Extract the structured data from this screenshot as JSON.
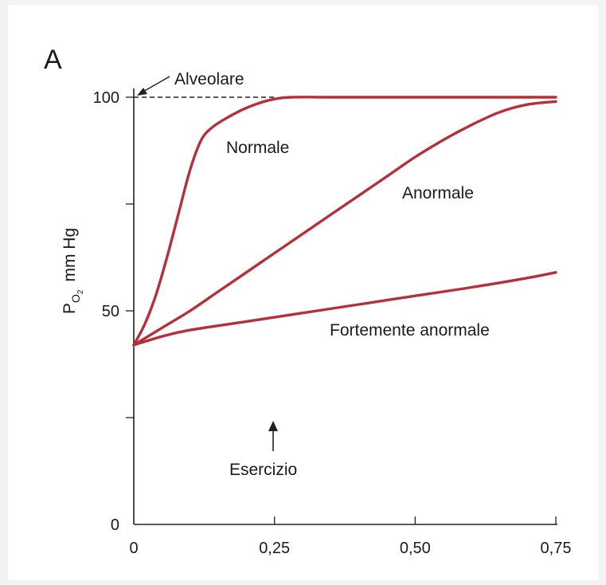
{
  "panel_label": "A",
  "chart_data": {
    "type": "line",
    "title": "",
    "xlabel": "",
    "ylabel": {
      "base": "P",
      "sub": "O",
      "subsub": "2",
      "unit": "mm Hg"
    },
    "xlim": [
      0,
      0.75
    ],
    "ylim": [
      0,
      100
    ],
    "x_ticks": [
      0,
      0.25,
      0.5,
      0.75
    ],
    "x_tick_labels": [
      "0",
      "0,25",
      "0,50",
      "0,75"
    ],
    "y_ticks": [
      0,
      25,
      50,
      75,
      100
    ],
    "y_tick_labels": [
      "0",
      "",
      "50",
      "",
      "100"
    ],
    "grid": false,
    "series_color": "#b5303a",
    "series": [
      {
        "name": "Normale",
        "x": [
          0,
          0.02,
          0.04,
          0.06,
          0.08,
          0.1,
          0.12,
          0.14,
          0.17,
          0.2,
          0.24,
          0.28,
          0.35,
          0.5,
          0.75
        ],
        "y": [
          42,
          47,
          54,
          63,
          73,
          83,
          90,
          93,
          95.5,
          97.5,
          99.3,
          100,
          100,
          100,
          100
        ]
      },
      {
        "name": "Anormale",
        "x": [
          0,
          0.05,
          0.1,
          0.15,
          0.2,
          0.25,
          0.3,
          0.35,
          0.4,
          0.45,
          0.5,
          0.55,
          0.6,
          0.65,
          0.7,
          0.75
        ],
        "y": [
          42,
          46,
          50,
          54.5,
          59,
          63.5,
          68,
          72.5,
          77,
          81.5,
          86,
          90,
          93.5,
          96.5,
          98.3,
          99
        ]
      },
      {
        "name": "Fortemente anormale",
        "x": [
          0,
          0.05,
          0.1,
          0.2,
          0.3,
          0.4,
          0.5,
          0.6,
          0.7,
          0.75
        ],
        "y": [
          42,
          44,
          45.5,
          47.5,
          49.5,
          51.5,
          53.5,
          55.5,
          57.7,
          59
        ]
      }
    ],
    "reference_line": {
      "name": "Alveolare",
      "y": 100
    },
    "annotations": [
      {
        "text": "Esercizio",
        "x": 0.25
      }
    ]
  }
}
